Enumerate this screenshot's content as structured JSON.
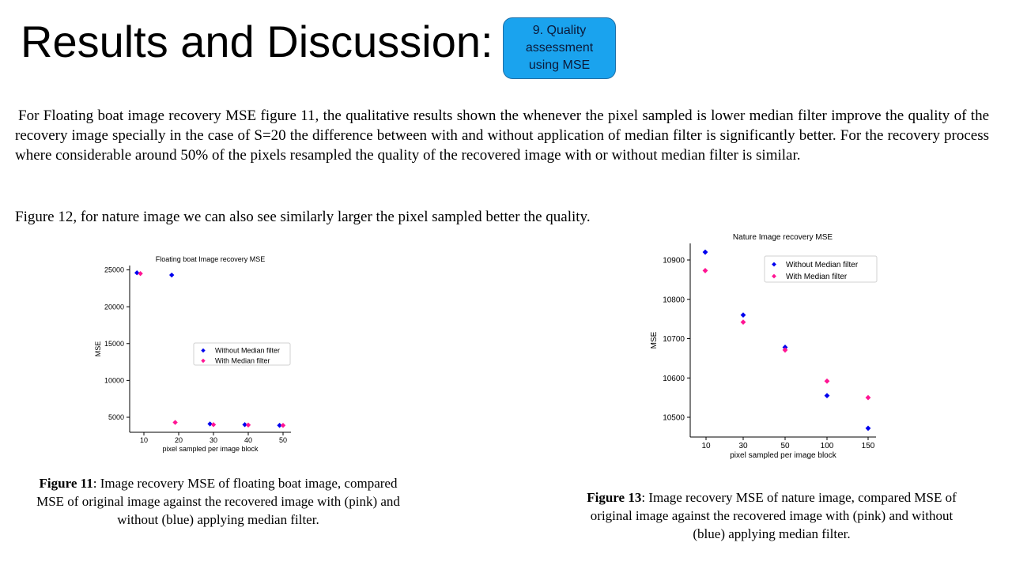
{
  "slide": {
    "title": "Results and Discussion:",
    "badge": "9. Quality assessment using MSE",
    "paragraph1": "For Floating boat image recovery MSE figure 11, the qualitative results shown the whenever the pixel sampled is lower median filter improve the quality of the recovery image specially in the case of S=20 the difference between with and without application of median filter is significantly better. For the recovery process where considerable around 50% of the pixels resampled the quality of the recovered image with or without median filter is similar.",
    "paragraph2": "Figure 12, for nature image we can also see similarly larger the pixel sampled better the quality.",
    "caption11_label": "Figure 11",
    "caption11_text": ": Image recovery MSE of floating boat image, compared MSE of original image against the recovered image with (pink) and without (blue) applying median filter.",
    "caption13_label": "Figure 13",
    "caption13_text": ": Image recovery MSE of nature image, compared MSE of original image against the recovered image with (pink) and without (blue) applying median filter."
  },
  "colors": {
    "without": "#0000ee",
    "with": "#ff1493",
    "badge": "#1aa3ee"
  },
  "chart_data": [
    {
      "type": "scatter",
      "title": "Floating boat Image recovery MSE",
      "xlabel": "pixel sampled per image block",
      "ylabel": "MSE",
      "x_ticks": [
        "10",
        "20",
        "30",
        "40",
        "50"
      ],
      "y_ticks": [
        "5000",
        "10000",
        "15000",
        "20000",
        "25000"
      ],
      "legend_position": "center-right",
      "series": [
        {
          "name": "Without Median filter",
          "x": [
            8,
            18,
            29,
            39,
            49
          ],
          "y": [
            24600,
            24300,
            4100,
            4000,
            3900
          ]
        },
        {
          "name": "With Median filter",
          "x": [
            9,
            19,
            30,
            40,
            50
          ],
          "y": [
            24500,
            4300,
            4000,
            3950,
            3900
          ]
        }
      ]
    },
    {
      "type": "scatter",
      "title": "Nature Image recovery MSE",
      "xlabel": "pixel sampled per image block",
      "ylabel": "MSE",
      "x_ticks": [
        "10",
        "30",
        "50",
        "100",
        "150"
      ],
      "y_ticks": [
        "10500",
        "10600",
        "10700",
        "10800",
        "10900"
      ],
      "legend_position": "top-right",
      "series": [
        {
          "name": "Without Median filter",
          "x": [
            10,
            30,
            50,
            100,
            150
          ],
          "y": [
            10920,
            10760,
            10678,
            10555,
            10472
          ]
        },
        {
          "name": "With Median filter",
          "x": [
            10,
            30,
            50,
            100,
            150
          ],
          "y": [
            10873,
            10742,
            10671,
            10592,
            10550
          ]
        }
      ]
    }
  ]
}
